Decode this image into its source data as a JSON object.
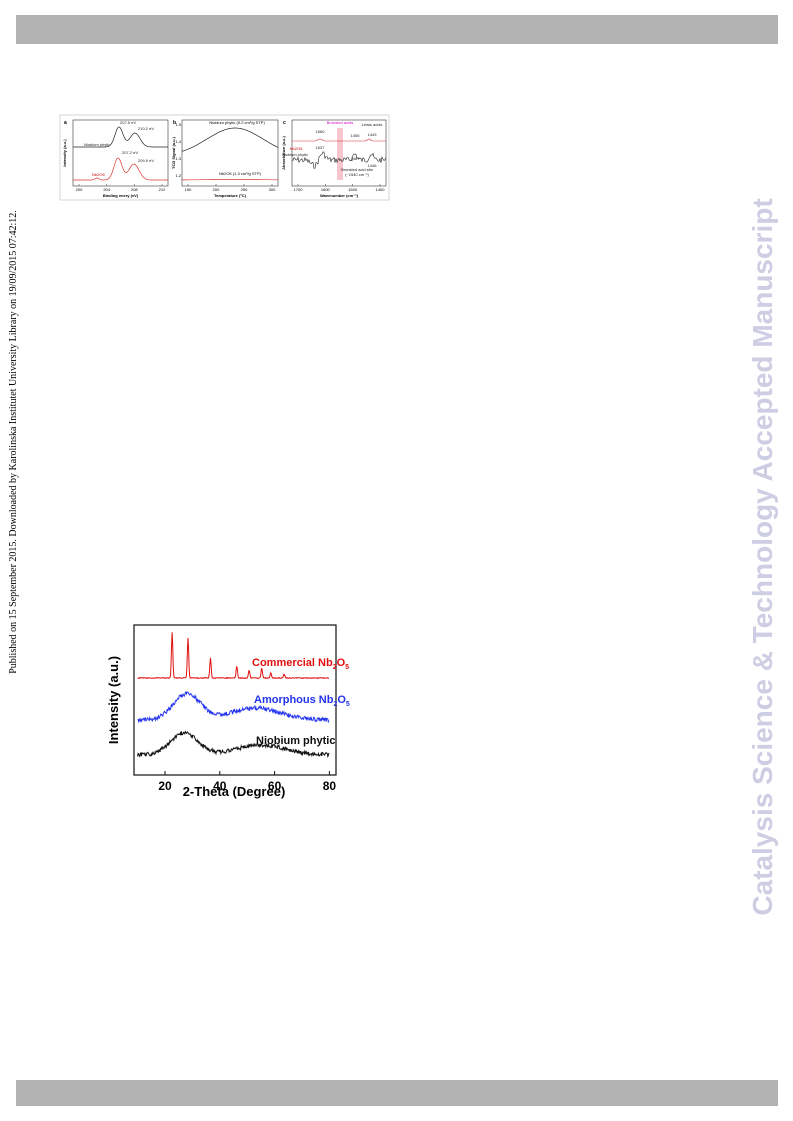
{
  "side_note": "Published on 15 September 2015. Downloaded by Karolinska Institutet University Library on 19/09/2015 07:42:12.",
  "watermark": "Catalysis Science & Technology Accepted Manuscript",
  "figure1": {
    "panels": [
      {
        "label": "a",
        "ylabel": "Intensity (a.u.)",
        "xlabel": "Binding enery (eV)",
        "xticks": [
          "200",
          "204",
          "208",
          "212"
        ],
        "annotations": [
          "207.5 eV",
          "210.2 eV",
          "Niobium phytic",
          "207.2 eV",
          "209.9 eV",
          "Nb2O5"
        ]
      },
      {
        "label": "b",
        "ylabel": "TCD Signal (a.u.)",
        "xlabel": "Temperature (ºC)",
        "xticks": [
          "150",
          "200",
          "250",
          "300"
        ],
        "yticks": [
          "1.5",
          "1.4",
          "1.3",
          "1.2"
        ],
        "annotations": [
          "Niobium phytic (9.2 cm³/g STP)",
          "Nb2O5 (1.3 cm³/g STP)"
        ]
      },
      {
        "label": "c",
        "ylabel": "Absorbance (a.u.)",
        "xlabel": "Wavenumber (cm⁻¹)",
        "xticks": [
          "1700",
          "1600",
          "1500",
          "1400"
        ],
        "annotations": [
          "Bronsted acids",
          "Lewis acids",
          "Nb2O5",
          "1660",
          "1455",
          "1443",
          "Niobium phytic",
          "1637",
          "1487",
          "1446",
          "Bronsted acid site",
          "(~1540 cm⁻¹)"
        ]
      }
    ]
  },
  "figure2": {
    "ylabel": "Intensity (a.u.)",
    "xlabel": "2-Theta (Degree)",
    "xticks": [
      "20",
      "40",
      "60",
      "80"
    ],
    "labels": [
      [
        "Commercial Nb",
        "2",
        "O",
        "5"
      ],
      [
        "Amorphous Nb",
        "2",
        "O",
        "5"
      ],
      [
        "Niobium phytic"
      ]
    ]
  }
}
